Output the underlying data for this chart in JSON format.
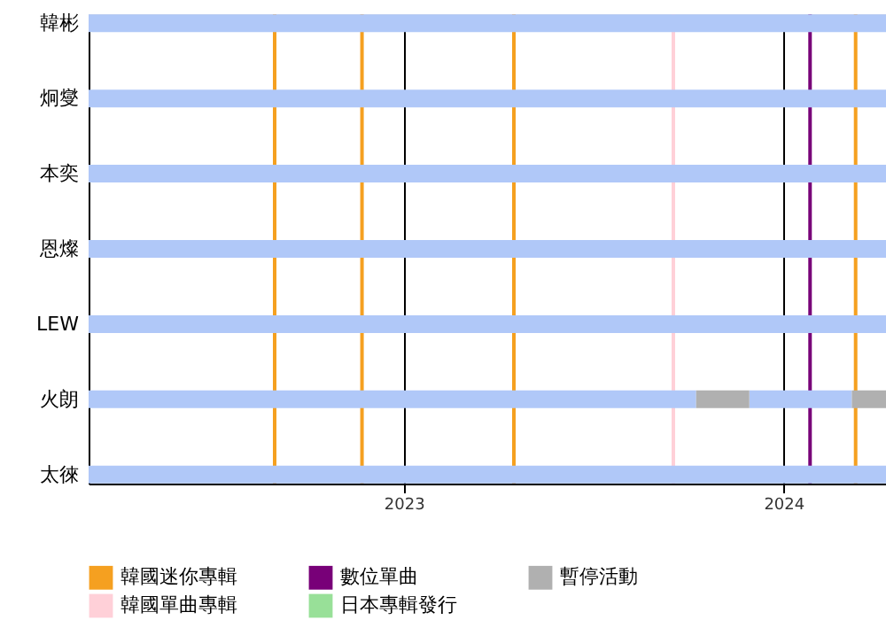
{
  "chart_data": {
    "type": "bar",
    "orientation": "horizontal",
    "categories": [
      "韓彬",
      "炯燮",
      "本奕",
      "恩燦",
      "LEW",
      "火朗",
      "太徠"
    ],
    "series": [
      {
        "color": "#b0c8f8",
        "base": [
          2022.17,
          2022.17,
          2022.17,
          2022.17,
          2022.17,
          2022.17,
          2022.17
        ],
        "values": [
          2.1,
          2.1,
          2.1,
          2.1,
          2.1,
          1.6,
          2.1
        ]
      },
      {
        "color": "#b0c8f8",
        "base": [
          null,
          null,
          null,
          null,
          null,
          2023.91,
          null
        ],
        "values": [
          null,
          null,
          null,
          null,
          null,
          0.27,
          null
        ]
      },
      {
        "name": "日本專輯發行",
        "color": "#98e098",
        "base": [
          null,
          null,
          null,
          null,
          null,
          null,
          null
        ],
        "values": [
          null,
          null,
          null,
          null,
          null,
          null,
          null
        ]
      },
      {
        "name": "暫停活動",
        "color": "#b0b0b0",
        "base": [
          null,
          null,
          null,
          null,
          null,
          2023.77,
          null
        ],
        "values": [
          null,
          null,
          null,
          null,
          null,
          0.14,
          null
        ]
      },
      {
        "color": "#b0b0b0",
        "base": [
          null,
          null,
          null,
          null,
          null,
          2024.18,
          null
        ],
        "values": [
          null,
          null,
          null,
          null,
          null,
          0.09,
          null
        ]
      }
    ],
    "ref_lines": [
      {
        "axis": "x",
        "value": 2022.66,
        "label": "韓國迷你專輯",
        "color": "#f5a020"
      },
      {
        "axis": "x",
        "value": 2022.89,
        "color": "#f5a020"
      },
      {
        "axis": "x",
        "value": 2023.29,
        "color": "#f5a020"
      },
      {
        "axis": "x",
        "value": 2023.71,
        "label": "韓國單曲專輯",
        "color": "#ffd0d8"
      },
      {
        "axis": "x",
        "value": 2024.07,
        "label": "數位單曲",
        "color": "#780078"
      },
      {
        "axis": "x",
        "value": 2024.19,
        "color": "#f5a020"
      }
    ],
    "xlim": [
      2022.17,
      2024.27
    ],
    "xticks": [
      2023,
      2024
    ],
    "grid": "x",
    "legend": "bottom"
  }
}
